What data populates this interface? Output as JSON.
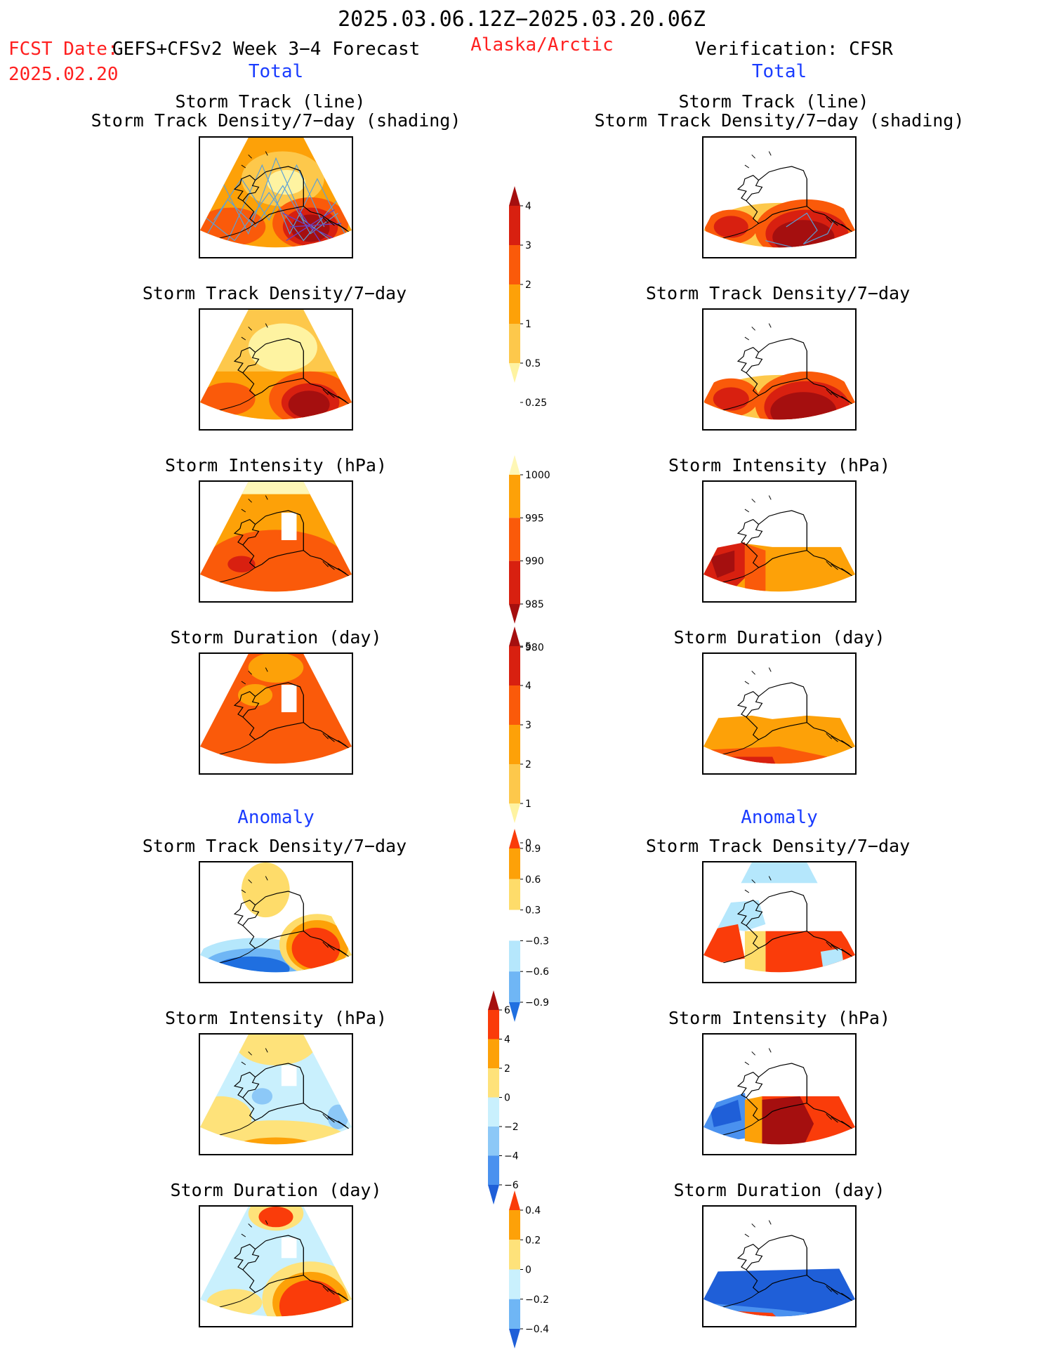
{
  "header": {
    "period": "2025.03.06.12Z−2025.03.20.06Z",
    "fcst_label": "FCST Date:",
    "fcst_date": "2025.02.20",
    "model": "GEFS+CFSv2 Week 3−4 Forecast",
    "region": "Alaska/Arctic",
    "verification": "Verification: CFSR"
  },
  "sections": {
    "total_left": "Total",
    "total_right": "Total",
    "anomaly_left": "Anomaly",
    "anomaly_right": "Anomaly"
  },
  "panel_titles": {
    "track_line": "Storm Track (line)",
    "track_density_shading": "Storm Track Density/7−day (shading)",
    "track_density": "Storm Track Density/7−day",
    "intensity": "Storm Intensity (hPa)",
    "duration": "Storm Duration (day)"
  },
  "colorbars": {
    "density": {
      "labels": [
        "4",
        "3",
        "2",
        "1",
        "0.5",
        "0.25"
      ],
      "colors": [
        "#a50f0f",
        "#d82010",
        "#fa5a0a",
        "#fda108",
        "#fdc84b",
        "#fef3a1"
      ]
    },
    "intensity": {
      "labels": [
        "1000",
        "995",
        "990",
        "985",
        "980"
      ],
      "colors": [
        "#fef7b6",
        "#fda108",
        "#fa5a0a",
        "#d82010",
        "#a50f0f"
      ]
    },
    "duration": {
      "labels": [
        "5",
        "4",
        "3",
        "2",
        "1",
        "0"
      ],
      "colors": [
        "#a50f0f",
        "#d82010",
        "#fa5a0a",
        "#fda108",
        "#fdc84b",
        "#fef3a1"
      ]
    },
    "anom_density": {
      "labels": [
        "0.9",
        "0.6",
        "0.3",
        "−0.3",
        "−0.6",
        "−0.9"
      ],
      "colors": [
        "#fa3c0a",
        "#fda108",
        "#fedc6a",
        "#ffffff",
        "#b5e7fc",
        "#6fb6f5",
        "#1f6fe0"
      ]
    },
    "anom_intensity": {
      "labels": [
        "6",
        "4",
        "2",
        "0",
        "−2",
        "−4",
        "−6"
      ],
      "colors": [
        "#a50f0f",
        "#fa3c0a",
        "#fda108",
        "#fee27a",
        "#c9f0fd",
        "#8cc8f7",
        "#4a91ef",
        "#1f5fd8"
      ]
    },
    "anom_duration": {
      "labels": [
        "0.4",
        "0.2",
        "0",
        "−0.2",
        "−0.4"
      ],
      "colors": [
        "#fa3c0a",
        "#fda108",
        "#fee27a",
        "#c9f0fd",
        "#6fb6f5",
        "#1f5fd8"
      ]
    }
  }
}
